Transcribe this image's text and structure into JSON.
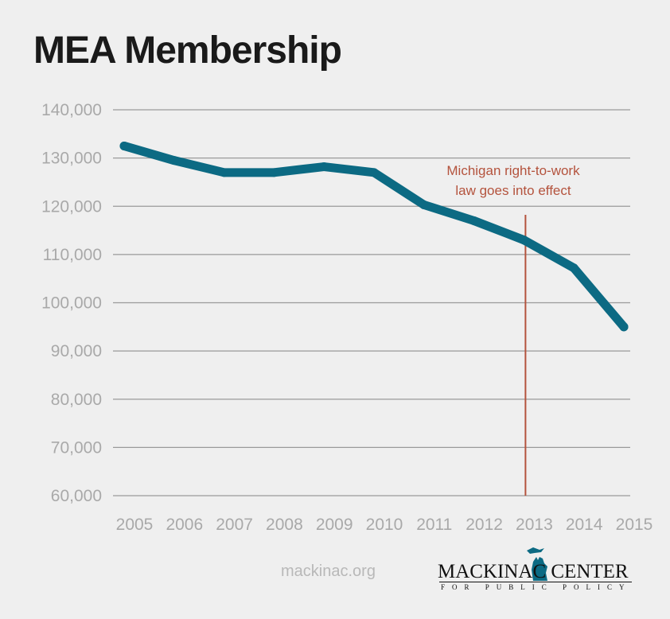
{
  "brand_color": "#0c6a83",
  "annotation_color": "#b4533d",
  "chart_data": {
    "type": "line",
    "title": "MEA Membership",
    "xlabel": "",
    "ylabel": "",
    "x": [
      "2005",
      "2006",
      "2007",
      "2008",
      "2009",
      "2010",
      "2011",
      "2012",
      "2013",
      "2014",
      "2015"
    ],
    "series": [
      {
        "values": [
          132500,
          129500,
          127000,
          127000,
          128200,
          127000,
          120300,
          117000,
          113000,
          107200,
          95000
        ]
      }
    ],
    "ylim": [
      60000,
      140000
    ],
    "yticks": [
      "60,000",
      "70,000",
      "80,000",
      "90,000",
      "100,000",
      "110,000",
      "120,000",
      "130,000",
      "140,000"
    ],
    "grid": true,
    "annotation": {
      "x": "2013",
      "lines": [
        "Michigan right-to-work",
        "law goes into effect"
      ]
    }
  },
  "footer": {
    "url": "mackinac.org",
    "logo_name": "MACKINAC CENTER",
    "logo_tagline": "FOR PUBLIC POLICY"
  }
}
